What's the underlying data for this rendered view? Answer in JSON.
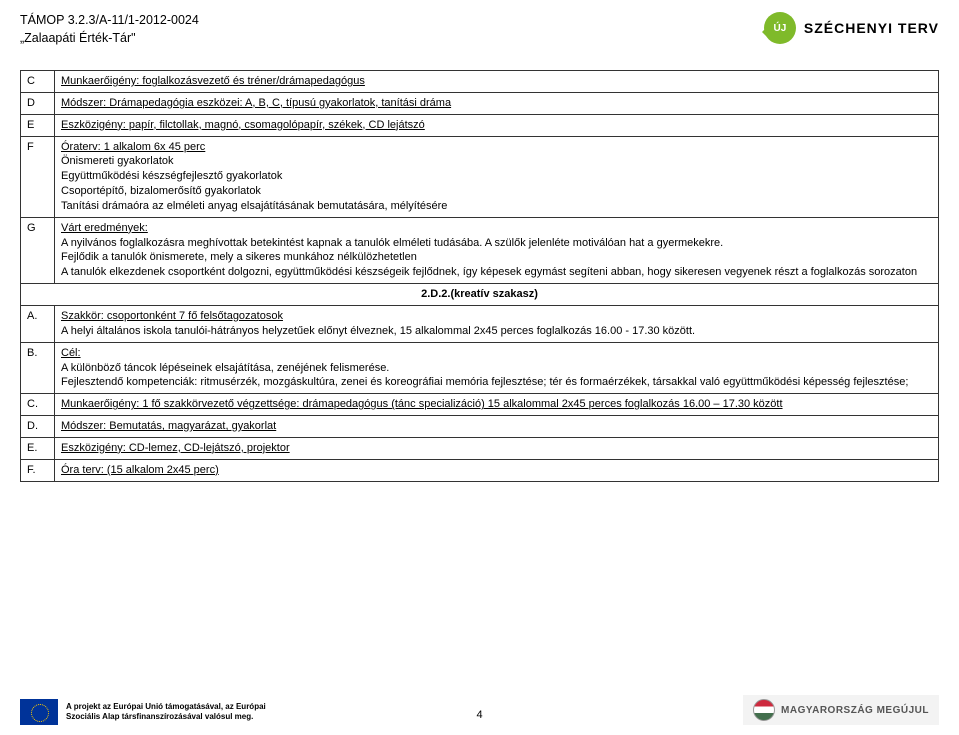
{
  "header": {
    "project_code": "TÁMOP 3.2.3/A-11/1-2012-0024",
    "project_name": "„Zalaapáti Érték-Tár\"",
    "badge_text": "ÚJ",
    "brand_text": "SZÉCHENYI TERV"
  },
  "rows": {
    "C": {
      "label": "C",
      "text": "Munkaerőigény: foglalkozásvezető és tréner/drámapedagógus"
    },
    "D": {
      "label": "D",
      "text": "Módszer: Drámapedagógia eszközei: A, B, C, típusú gyakorlatok, tanítási dráma"
    },
    "E": {
      "label": "E",
      "text": "Eszközigény: papír, filctollak, magnó, csomagolópapír, székek, CD lejátszó"
    },
    "F": {
      "label": "F",
      "lead": "Óraterv: 1 alkalom 6x 45 perc",
      "lines": [
        "Önismereti gyakorlatok",
        "Együttműködési készségfejlesztő gyakorlatok",
        "Csoportépítő, bizalomerősítő gyakorlatok",
        "Tanítási drámaóra az elméleti anyag elsajátításának bemutatására, mélyítésére"
      ]
    },
    "G": {
      "label": "G",
      "lead": "Várt eredmények:",
      "p1": "A nyilvános foglalkozásra meghívottak betekintést kapnak a tanulók elméleti tudásába. A szülők jelenléte motiválóan hat a gyermekekre.",
      "p2": "Fejlődik a tanulók önismerete, mely a sikeres munkához nélkülözhetetlen",
      "p3": "A tanulók elkezdenek csoportként dolgozni, együttműködési készségeik fejlődnek, így képesek egymást segíteni abban, hogy sikeresen vegyenek részt a foglalkozás sorozaton"
    }
  },
  "section2_title": "2.D.2.(kreatív szakasz)",
  "rows2": {
    "A": {
      "label": "A.",
      "p1": "Szakkör: csoportonként 7 fő felsőtagozatosok",
      "p2": "A helyi általános iskola tanulói-hátrányos helyzetűek előnyt élveznek, 15 alkalommal 2x45 perces foglalkozás 16.00 - 17.30 között."
    },
    "B": {
      "label": "B.",
      "lead": "Cél:",
      "p1": "A különböző táncok lépéseinek elsajátítása, zenéjének felismerése.",
      "p2": "Fejlesztendő kompetenciák: ritmusérzék, mozgáskultúra, zenei és koreográfiai memória fejlesztése; tér és formaérzékek, társakkal való együttműködési képesség fejlesztése;"
    },
    "C": {
      "label": "C.",
      "text": "Munkaerőigény: 1 fő szakkörvezető végzettsége: drámapedagógus (tánc specializáció)   15 alkalommal 2x45 perces foglalkozás 16.00 – 17.30 között"
    },
    "D": {
      "label": "D.",
      "text": "Módszer: Bemutatás, magyarázat, gyakorlat"
    },
    "E": {
      "label": "E.",
      "text": "Eszközigény: CD-lemez, CD-lejátszó, projektor"
    },
    "F": {
      "label": "F.",
      "text": "Óra terv: (15 alkalom 2x45 perc)"
    }
  },
  "footer": {
    "eu_line1": "A projekt az Európai Unió támogatásával, az Európai",
    "eu_line2": "Szociális Alap társfinanszírozásával valósul meg.",
    "right_text": "MAGYARORSZÁG MEGÚJUL",
    "page_number": "4"
  }
}
